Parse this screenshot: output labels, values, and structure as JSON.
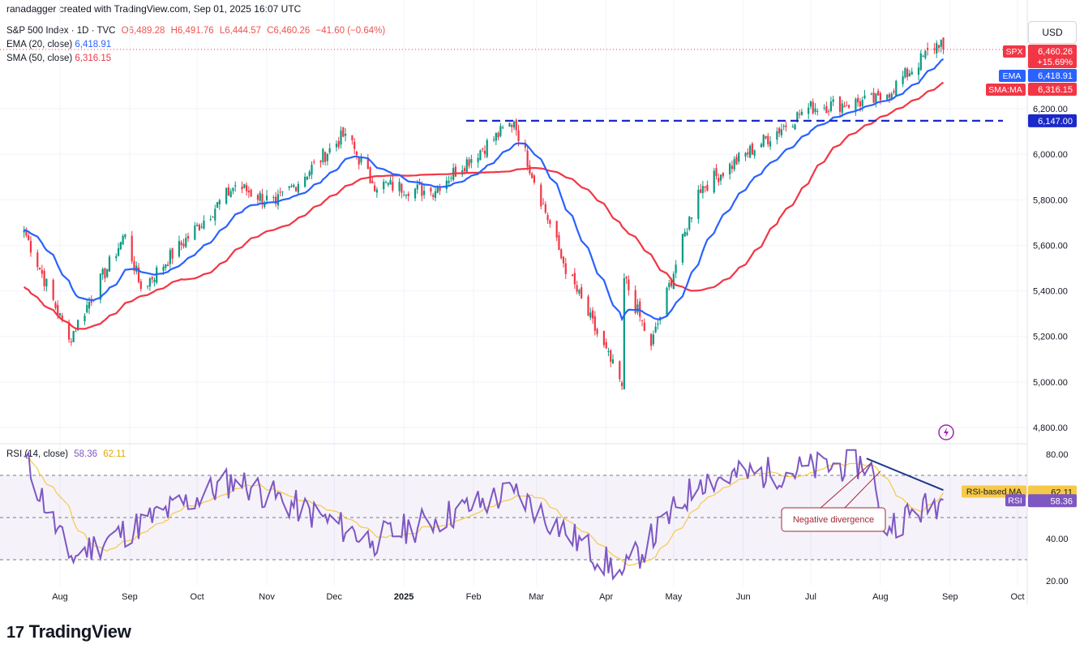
{
  "header": {
    "attribution": "ranadagger created with TradingView.com, Sep 01, 2025 16:07 UTC"
  },
  "legend": {
    "symbol": "S&P 500 Index · 1D · TVC",
    "open": "O6,489.28",
    "high": "H6,491.76",
    "low": "L6,444.57",
    "close": "C6,460.26",
    "change": "−41.60 (−0.64%)",
    "ema_label": "EMA (20, close)",
    "ema_value": "6,418.91",
    "sma_label": "SMA (50, close)",
    "sma_value": "6,316.15",
    "rsi_label": "RSI (14, close)",
    "rsi_value": "58.36",
    "rsi_ma_value": "62.11"
  },
  "currency": "USD",
  "logo": {
    "text": "TradingView",
    "mark": "17"
  },
  "tags": {
    "spx": {
      "name": "SPX",
      "value": "6,460.26",
      "pct": "+15.69%"
    },
    "ema": {
      "name": "EMA",
      "value": "6,418.91"
    },
    "sma": {
      "name": "SMA:MA",
      "value": "6,316.15"
    },
    "level": {
      "value": "6,147.00"
    },
    "rsi_ma": {
      "name": "RSI-based MA",
      "value": "62.11"
    },
    "rsi": {
      "name": "RSI",
      "value": "58.36"
    }
  },
  "annotation": {
    "text": "Negative divergence"
  },
  "colors": {
    "up": "#089981",
    "down": "#f23645",
    "ema": "#2962ff",
    "sma": "#f23645",
    "rsi": "#7e57c2",
    "rsi_ma": "#f7c948",
    "level": "#1a29c8",
    "trendline": "#1e3a8a"
  },
  "chart_data": [
    {
      "type": "candlestick",
      "title": "S&P 500 Index · 1D · TVC",
      "y_axis_ticks": [
        "4,800.00",
        "5,000.00",
        "5,200.00",
        "5,400.00",
        "5,600.00",
        "5,800.00",
        "6,000.00",
        "6,200.00"
      ],
      "ylim": [
        4760,
        6560
      ],
      "x_axis_labels": [
        "Aug",
        "Sep",
        "Oct",
        "Nov",
        "Dec",
        "2025",
        "Feb",
        "Mar",
        "Apr",
        "May",
        "Jun",
        "Jul",
        "Aug",
        "Sep",
        "Oct"
      ],
      "key_points": [
        {
          "date": "2024-07-16",
          "close": 5667
        },
        {
          "date": "2024-08-05",
          "close": 5186
        },
        {
          "date": "2024-08-30",
          "close": 5648
        },
        {
          "date": "2024-09-06",
          "close": 5408
        },
        {
          "date": "2024-10-18",
          "close": 5864
        },
        {
          "date": "2024-11-05",
          "close": 5782
        },
        {
          "date": "2024-12-06",
          "close": 6090
        },
        {
          "date": "2024-12-18",
          "close": 5872
        },
        {
          "date": "2025-01-13",
          "close": 5836
        },
        {
          "date": "2025-02-19",
          "close": 6144
        },
        {
          "date": "2025-03-13",
          "close": 5521
        },
        {
          "date": "2025-04-08",
          "close": 4982
        },
        {
          "date": "2025-04-09",
          "close": 5456
        },
        {
          "date": "2025-04-21",
          "close": 5158
        },
        {
          "date": "2025-05-12",
          "close": 5844
        },
        {
          "date": "2025-06-30",
          "close": 6205
        },
        {
          "date": "2025-08-01",
          "close": 6238
        },
        {
          "date": "2025-08-28",
          "close": 6502
        },
        {
          "date": "2025-08-29",
          "close": 6460.26
        }
      ],
      "series": [
        {
          "name": "EMA (20, close)",
          "last": 6418.91
        },
        {
          "name": "SMA (50, close)",
          "last": 6316.15
        }
      ],
      "horizontal_level": 6147.0,
      "last_close": 6460.26,
      "change_pct_label": "+15.69%"
    },
    {
      "type": "line",
      "title": "RSI (14, close)",
      "y_axis_ticks": [
        "20.00",
        "40.00",
        "80.00"
      ],
      "ylim": [
        18,
        84
      ],
      "bands": [
        30,
        50,
        70
      ],
      "series": [
        {
          "name": "RSI (14, close)",
          "last": 58.36
        },
        {
          "name": "RSI-based MA",
          "last": 62.11
        }
      ],
      "key_points": [
        {
          "date": "2024-07-16",
          "rsi": 79
        },
        {
          "date": "2024-08-05",
          "rsi": 31
        },
        {
          "date": "2024-10-18",
          "rsi": 68
        },
        {
          "date": "2024-12-18",
          "rsi": 39
        },
        {
          "date": "2025-02-19",
          "rsi": 62
        },
        {
          "date": "2025-04-08",
          "rsi": 23
        },
        {
          "date": "2025-05-13",
          "rsi": 68
        },
        {
          "date": "2025-07-28",
          "rsi": 76
        },
        {
          "date": "2025-08-01",
          "rsi": 45
        },
        {
          "date": "2025-08-29",
          "rsi": 58.36
        }
      ],
      "annotation": "Negative divergence"
    }
  ]
}
